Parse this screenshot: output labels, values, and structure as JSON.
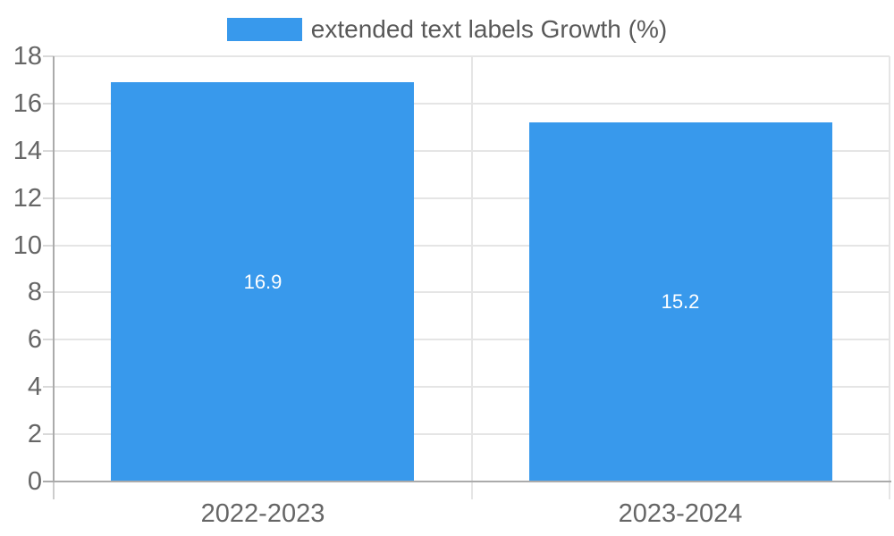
{
  "chart_data": {
    "type": "bar",
    "title": "",
    "xlabel": "",
    "ylabel": "",
    "legend": {
      "label": "extended text labels Growth (%)",
      "position": "top"
    },
    "categories": [
      "2022-2023",
      "2023-2024"
    ],
    "series": [
      {
        "name": "extended text labels Growth (%)",
        "values": [
          16.9,
          15.2
        ]
      }
    ],
    "value_labels": [
      "16.9",
      "15.2"
    ],
    "ylim": [
      0,
      18
    ],
    "yticks": [
      0,
      2,
      4,
      6,
      8,
      10,
      12,
      14,
      16,
      18
    ],
    "grid": true,
    "colors": {
      "bar": "#3899ec",
      "axis": "#ababab",
      "gridline": "#e5e5e5",
      "tick": "#d9d9d9",
      "tick_label": "#666666",
      "legend_text": "#595959",
      "data_label": "#ffffff",
      "background": "#ffffff"
    }
  }
}
